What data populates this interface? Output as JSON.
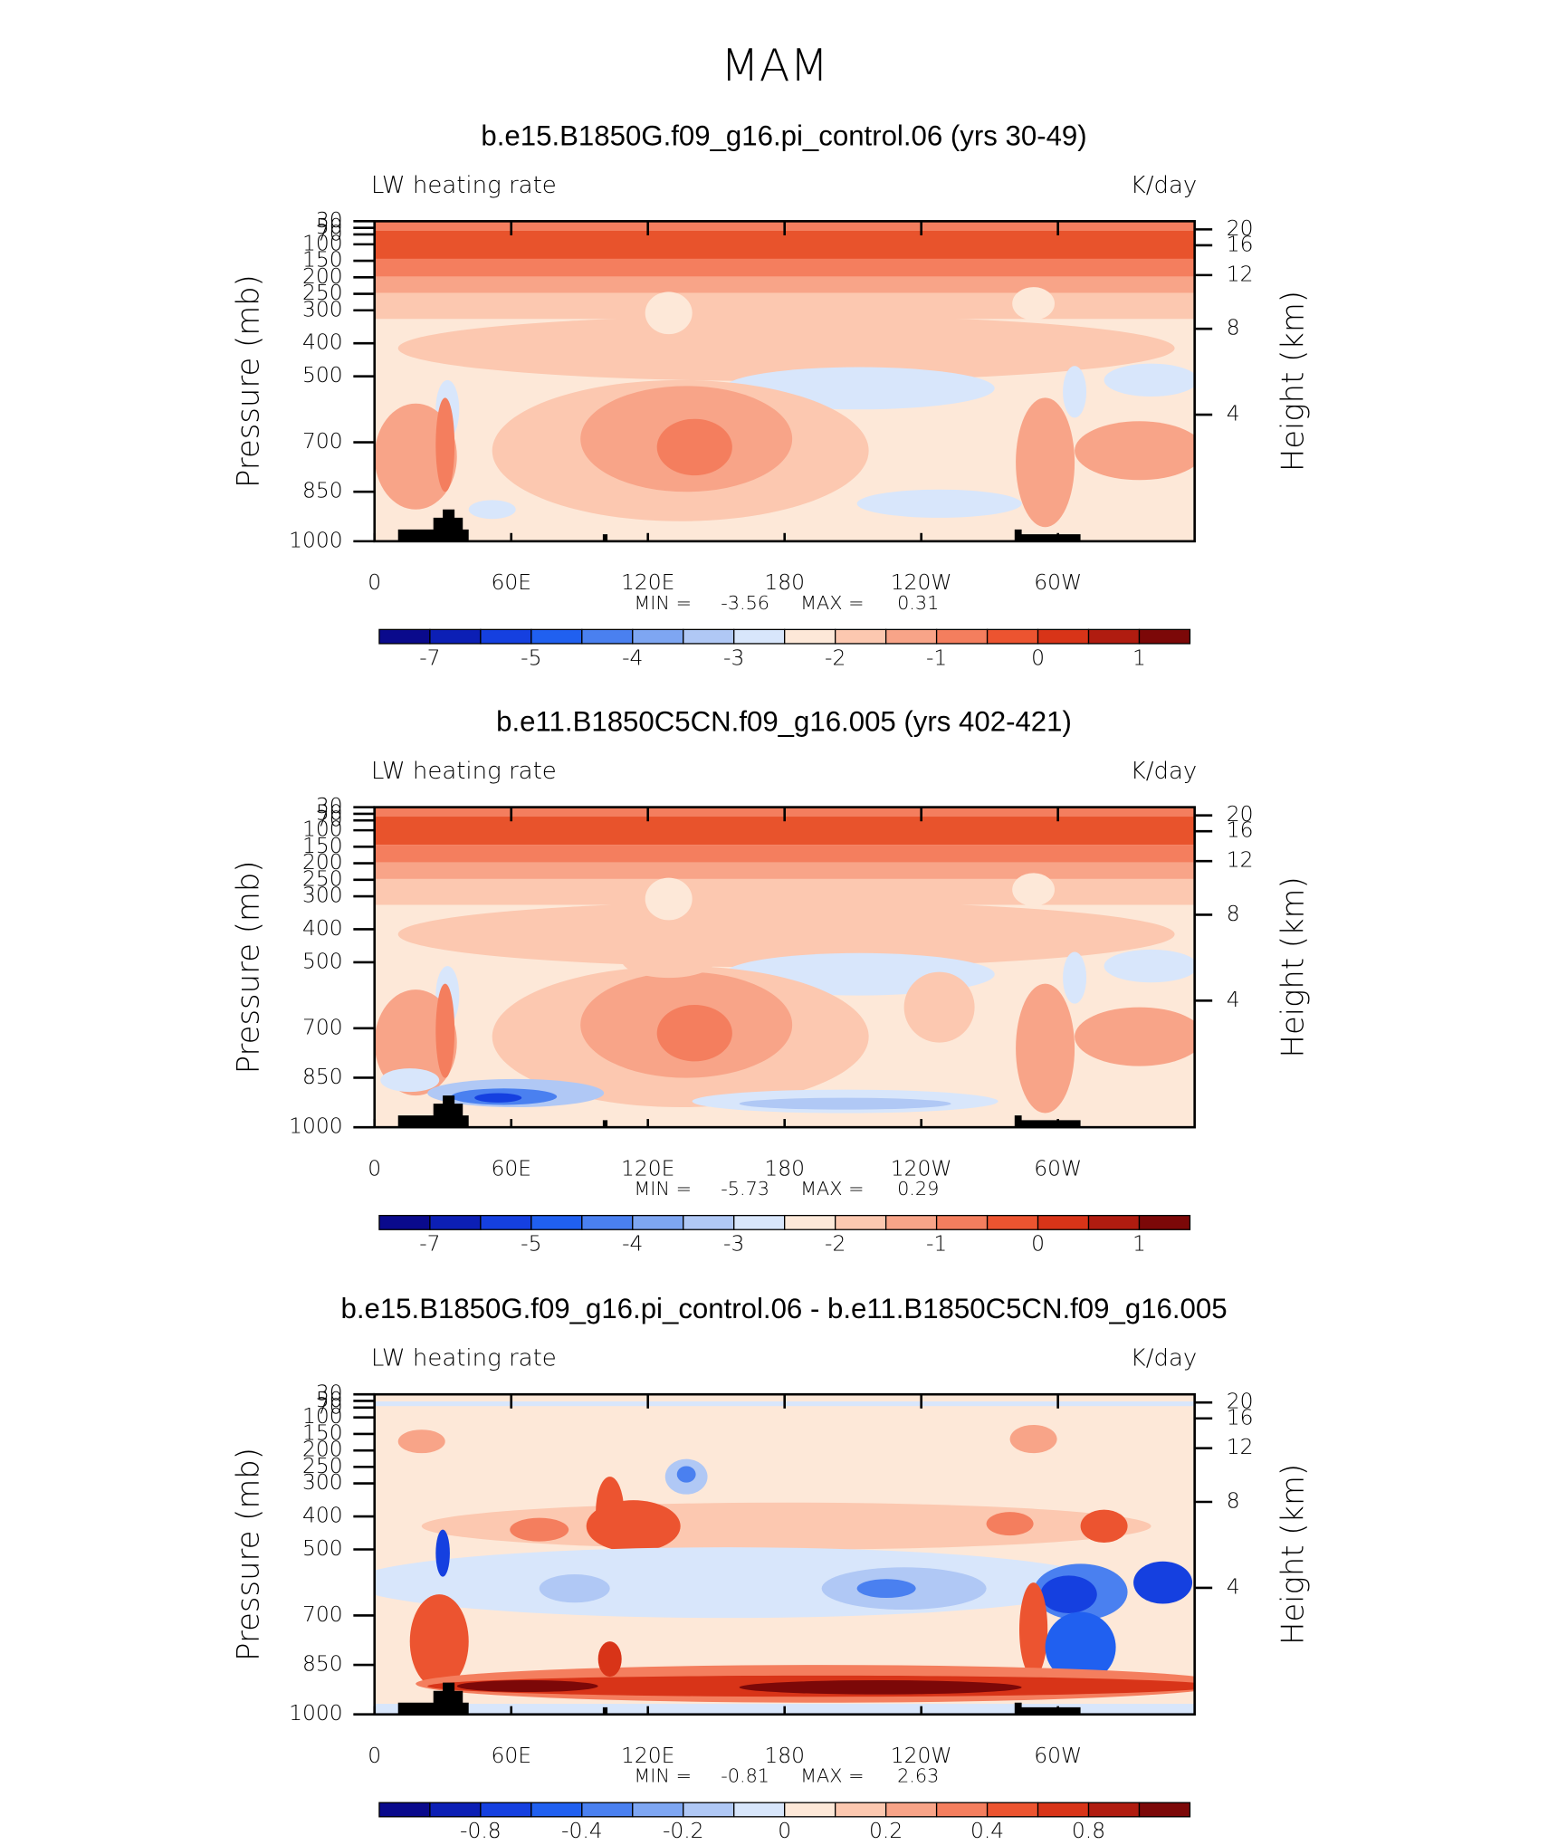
{
  "title": "MAM",
  "chart_data": [
    {
      "type": "contour",
      "title": "b.e15.B1850G.f09_g16.pi_control.06 (yrs 30-49)",
      "left_label": "LW heating rate",
      "right_label": "K/day",
      "ylabel": "Pressure (mb)",
      "y2label": "Height (km)",
      "xlim": [
        0,
        360
      ],
      "xticks": [
        0,
        {
          "value": 60,
          "label": "60E"
        },
        {
          "value": 120,
          "label": "120E"
        },
        180,
        {
          "value": 240,
          "label": "120W"
        },
        {
          "value": 300,
          "label": "60W"
        }
      ],
      "ylim": [
        1000,
        30
      ],
      "yticks": [
        30,
        50,
        70,
        100,
        150,
        200,
        250,
        300,
        400,
        500,
        700,
        850,
        1000
      ],
      "y2ticks": [
        4,
        8,
        12,
        16,
        20
      ],
      "min_label": "MIN =",
      "min": -3.56,
      "max_label": "MAX =",
      "max": 0.31,
      "colorbar": {
        "colors": [
          "#0a0a8c",
          "#0c1fb5",
          "#1540e0",
          "#2060f0",
          "#4a80f0",
          "#7ea6f2",
          "#b0c8f5",
          "#d8e6fb",
          "#fde8d8",
          "#fcc8b0",
          "#f8a488",
          "#f47e5e",
          "#ec5430",
          "#d83418",
          "#b01c10",
          "#7c0808"
        ],
        "labels": [
          -7,
          -5,
          -4,
          -3,
          -2,
          -1,
          0,
          1
        ]
      }
    },
    {
      "type": "contour",
      "title": "b.e11.B1850C5CN.f09_g16.005 (yrs 402-421)",
      "left_label": "LW heating rate",
      "right_label": "K/day",
      "ylabel": "Pressure (mb)",
      "y2label": "Height (km)",
      "xlim": [
        0,
        360
      ],
      "xticks": [
        0,
        {
          "value": 60,
          "label": "60E"
        },
        {
          "value": 120,
          "label": "120E"
        },
        180,
        {
          "value": 240,
          "label": "120W"
        },
        {
          "value": 300,
          "label": "60W"
        }
      ],
      "ylim": [
        1000,
        30
      ],
      "yticks": [
        30,
        50,
        70,
        100,
        150,
        200,
        250,
        300,
        400,
        500,
        700,
        850,
        1000
      ],
      "y2ticks": [
        4,
        8,
        12,
        16,
        20
      ],
      "min_label": "MIN =",
      "min": -5.73,
      "max_label": "MAX =",
      "max": 0.29,
      "colorbar": {
        "colors": [
          "#0a0a8c",
          "#0c1fb5",
          "#1540e0",
          "#2060f0",
          "#4a80f0",
          "#7ea6f2",
          "#b0c8f5",
          "#d8e6fb",
          "#fde8d8",
          "#fcc8b0",
          "#f8a488",
          "#f47e5e",
          "#ec5430",
          "#d83418",
          "#b01c10",
          "#7c0808"
        ],
        "labels": [
          -7,
          -5,
          -4,
          -3,
          -2,
          -1,
          0,
          1
        ]
      }
    },
    {
      "type": "contour",
      "title": "b.e15.B1850G.f09_g16.pi_control.06 - b.e11.B1850C5CN.f09_g16.005",
      "left_label": "LW heating rate",
      "right_label": "K/day",
      "ylabel": "Pressure (mb)",
      "y2label": "Height (km)",
      "xlim": [
        0,
        360
      ],
      "xticks": [
        0,
        {
          "value": 60,
          "label": "60E"
        },
        {
          "value": 120,
          "label": "120E"
        },
        180,
        {
          "value": 240,
          "label": "120W"
        },
        {
          "value": 300,
          "label": "60W"
        }
      ],
      "ylim": [
        1000,
        30
      ],
      "yticks": [
        30,
        50,
        70,
        100,
        150,
        200,
        250,
        300,
        400,
        500,
        700,
        850,
        1000
      ],
      "y2ticks": [
        4,
        8,
        12,
        16,
        20
      ],
      "min_label": "MIN =",
      "min": -0.81,
      "max_label": "MAX =",
      "max": 2.63,
      "colorbar": {
        "colors": [
          "#0a0a8c",
          "#0c1fb5",
          "#1540e0",
          "#2060f0",
          "#4a80f0",
          "#7ea6f2",
          "#b0c8f5",
          "#d8e6fb",
          "#fde8d8",
          "#fcc8b0",
          "#f8a488",
          "#f47e5e",
          "#ec5430",
          "#d83418",
          "#b01c10",
          "#7c0808"
        ],
        "labels": [
          -0.8,
          -0.4,
          -0.2,
          0,
          0.2,
          0.4,
          0.8
        ]
      }
    }
  ]
}
